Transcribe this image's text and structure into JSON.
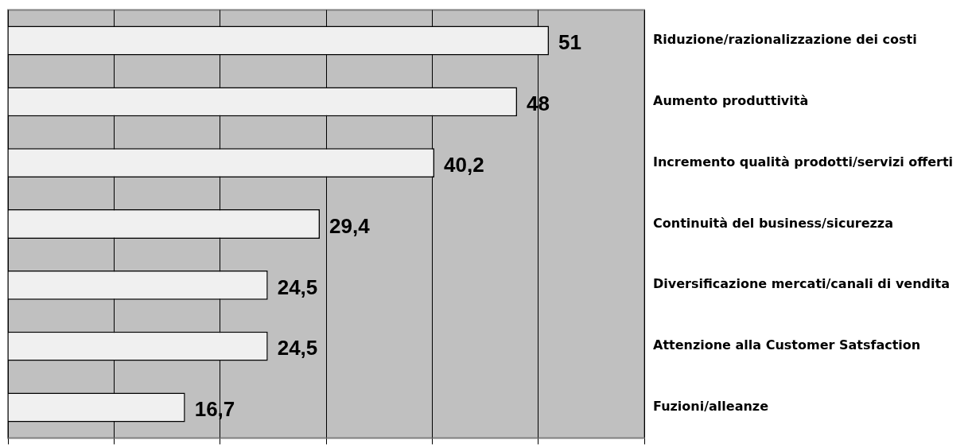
{
  "chart_data": {
    "type": "bar",
    "orientation": "horizontal",
    "categories": [
      "Riduzione/razionalizzazione dei costi",
      "Aumento produttività",
      "Incremento qualità prodotti/servizi offerti",
      "Continuità del business/sicurezza",
      "Diversificazione mercati/canali di vendita",
      "Attenzione alla Customer Satsfaction",
      "Fuzioni/alleanze"
    ],
    "values": [
      51,
      48,
      40.2,
      29.4,
      24.5,
      24.5,
      16.7
    ],
    "value_labels": [
      "51",
      "48",
      "40,2",
      "29,4",
      "24,5",
      "24,5",
      "16,7"
    ],
    "color": "#f0f0f0",
    "xlim": [
      0,
      60
    ],
    "xticks": [
      {
        "value": 0,
        "label": null
      },
      {
        "value": 10,
        "label": null
      },
      {
        "value": 20,
        "label": null
      },
      {
        "value": 30,
        "label": null
      },
      {
        "value": 40,
        "label": null
      },
      {
        "value": 50,
        "label": null
      },
      {
        "value": 60,
        "label": null
      }
    ],
    "grid": "x",
    "tick_labels": "y",
    "legend": false
  }
}
